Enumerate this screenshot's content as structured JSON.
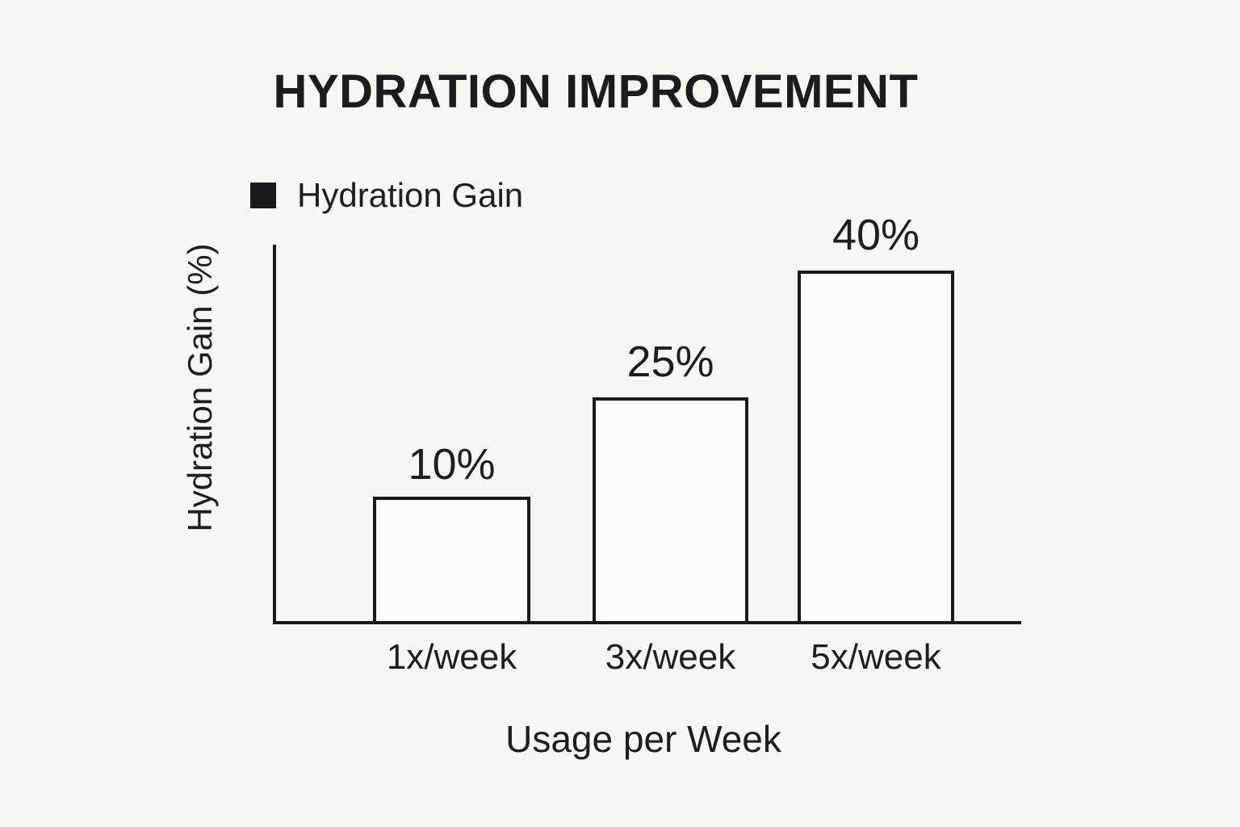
{
  "chart_data": {
    "type": "bar",
    "title": "HYDRATION IMPROVEMENT",
    "legend": [
      {
        "label": "Hydration Gain",
        "color": "#1a1a1a"
      }
    ],
    "legend_position": "top-left",
    "categories": [
      "1x/week",
      "3x/week",
      "5x/week"
    ],
    "values": [
      10,
      25,
      40
    ],
    "value_labels": [
      "10%",
      "25%",
      "40%"
    ],
    "xlabel": "Usage per Week",
    "ylabel": "Hydration Gain (%)",
    "ylim": [
      0,
      45
    ],
    "grid": false,
    "bar_fill": "#fcfaf6",
    "bar_stroke": "#1a1a1a",
    "background": "#f8f6f1"
  }
}
